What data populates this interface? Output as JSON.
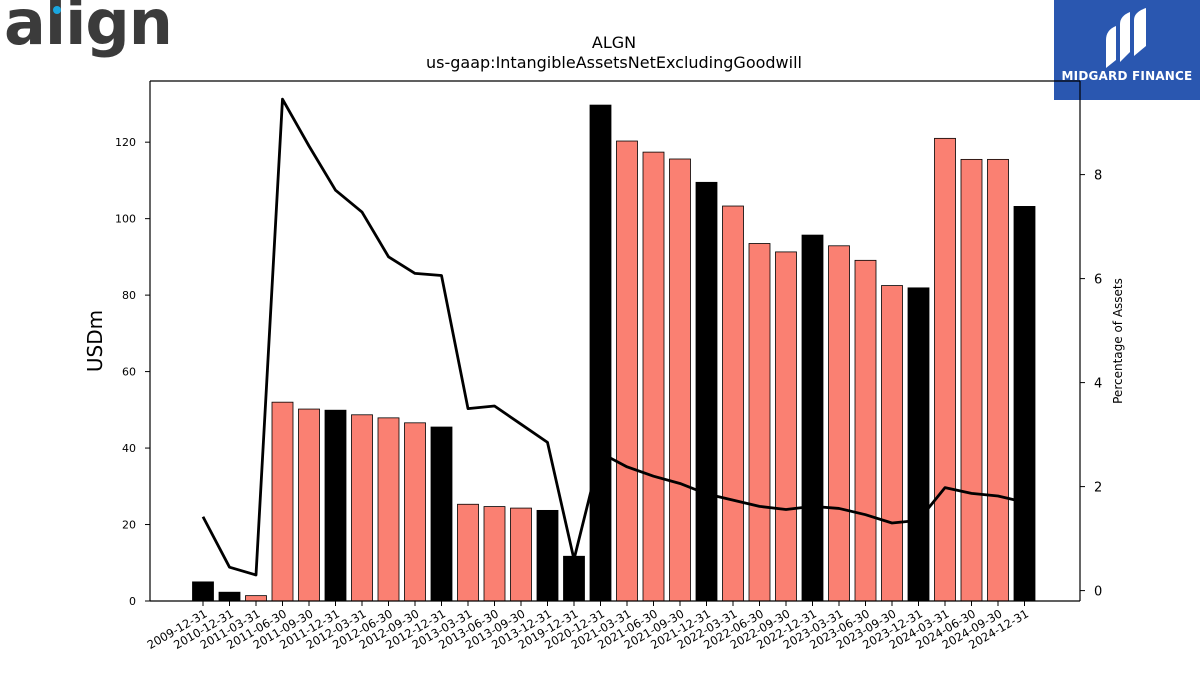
{
  "branding": {
    "company_logo_text": "align",
    "brand_name": "MIDGARD FINANCE",
    "colors": {
      "brand_box": "#2a57b0",
      "logo_dot": "#1aa7e0",
      "bar_highlight": "#000000",
      "bar_normal": "#fa8072"
    }
  },
  "chart_data": {
    "type": "bar",
    "title": "ALGN",
    "subtitle": "us-gaap:IntangibleAssetsNetExcludingGoodwill",
    "ylabel": "USDm",
    "y2label": "Percentage of Assets",
    "ylim": [
      0,
      136
    ],
    "y2lim": [
      -0.2,
      9.8
    ],
    "yticks": [
      0,
      20,
      40,
      60,
      80,
      100,
      120
    ],
    "y2ticks": [
      0,
      2,
      4,
      6,
      8
    ],
    "categories": [
      "2009-12-31",
      "2010-12-31",
      "2011-03-31",
      "2011-06-30",
      "2011-09-30",
      "2011-12-31",
      "2012-03-31",
      "2012-06-30",
      "2012-09-30",
      "2012-12-31",
      "2013-03-31",
      "2013-06-30",
      "2013-09-30",
      "2013-12-31",
      "2019-12-31",
      "2020-12-31",
      "2021-03-31",
      "2021-06-30",
      "2021-09-30",
      "2021-12-31",
      "2022-03-31",
      "2022-06-30",
      "2022-09-30",
      "2022-12-31",
      "2023-03-31",
      "2023-06-30",
      "2023-09-30",
      "2023-12-31",
      "2024-03-31",
      "2024-06-30",
      "2024-09-30",
      "2024-12-31"
    ],
    "series": [
      {
        "type": "bar",
        "values": [
          5.0,
          2.3,
          1.4,
          52.0,
          50.2,
          49.9,
          48.7,
          47.9,
          46.6,
          45.5,
          25.3,
          24.7,
          24.3,
          23.7,
          11.7,
          129.7,
          120.3,
          117.4,
          115.6,
          109.5,
          103.3,
          93.5,
          91.3,
          95.7,
          92.9,
          89.1,
          82.5,
          81.9,
          121.0,
          115.5,
          115.5,
          103.2
        ],
        "highlight_year_end": [
          true,
          true,
          false,
          false,
          false,
          true,
          false,
          false,
          false,
          true,
          false,
          false,
          false,
          true,
          true,
          true,
          false,
          false,
          false,
          true,
          false,
          false,
          false,
          true,
          false,
          false,
          false,
          true,
          false,
          false,
          false,
          true
        ]
      },
      {
        "type": "line",
        "axis": "secondary",
        "values": [
          1.42,
          0.45,
          0.3,
          9.45,
          8.55,
          7.7,
          7.28,
          6.42,
          6.1,
          6.06,
          3.5,
          3.55,
          3.2,
          2.85,
          0.6,
          2.65,
          2.38,
          2.2,
          2.06,
          1.86,
          1.74,
          1.62,
          1.56,
          1.62,
          1.58,
          1.46,
          1.3,
          1.35,
          1.98,
          1.87,
          1.82,
          1.7
        ]
      }
    ],
    "grid": false,
    "legend": "none"
  }
}
